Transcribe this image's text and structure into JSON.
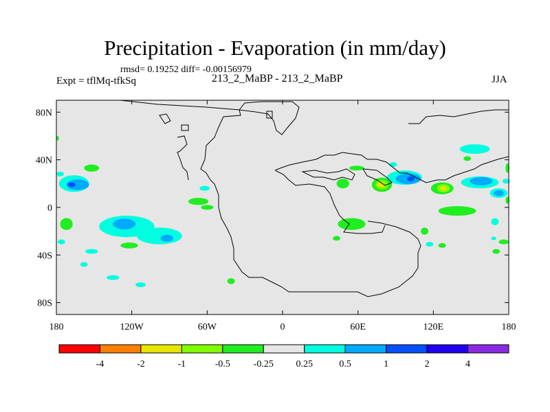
{
  "header": {
    "title": "Precipitation - Evaporation (in mm/day)",
    "stats": "rmsd= 0.19252 diff= -0.00156979",
    "expt": "Expt = tflMq-tfkSq",
    "cases": "213_2_MaBP - 213_2_MaBP",
    "season": "JJA"
  },
  "colors": {
    "background": "#e6e6e6",
    "land_outline": "#000000"
  },
  "chart_data": {
    "type": "heatmap",
    "title": "Precipitation - Evaporation (in mm/day)",
    "xlabel": "",
    "ylabel": "",
    "xlim": [
      -180,
      180
    ],
    "ylim": [
      -90,
      90
    ],
    "x_ticks": [
      {
        "value": -180,
        "label": "180"
      },
      {
        "value": -120,
        "label": "120W"
      },
      {
        "value": -60,
        "label": "60W"
      },
      {
        "value": 0,
        "label": "0"
      },
      {
        "value": 60,
        "label": "60E"
      },
      {
        "value": 120,
        "label": "120E"
      },
      {
        "value": 180,
        "label": "180"
      }
    ],
    "y_ticks": [
      {
        "value": 80,
        "label": "80N"
      },
      {
        "value": 40,
        "label": "40N"
      },
      {
        "value": 0,
        "label": "0"
      },
      {
        "value": -40,
        "label": "40S"
      },
      {
        "value": -80,
        "label": "80S"
      }
    ],
    "colorbar": {
      "levels": [
        "-4",
        "-2",
        "-1",
        "-0.5",
        "-0.25",
        "0.25",
        "0.5",
        "1",
        "2",
        "4"
      ],
      "colors": [
        "#ff0000",
        "#ff8000",
        "#e6e600",
        "#80ff00",
        "#20ee20",
        "#e6e6e6",
        "#00ffe0",
        "#00aaff",
        "#0050ff",
        "#2000ee",
        "#8a2be2"
      ]
    },
    "regions": [
      {
        "lon": -166,
        "lat": 20,
        "rlon": 12,
        "rlat": 7,
        "color": "#00ffe0"
      },
      {
        "lon": -163,
        "lat": 19,
        "rlon": 9,
        "rlat": 4.5,
        "color": "#00aaff"
      },
      {
        "lon": -168,
        "lat": 19,
        "rlon": 3,
        "rlat": 2,
        "color": "#0050ff"
      },
      {
        "lon": -152,
        "lat": 33,
        "rlon": 6,
        "rlat": 3,
        "color": "#20ee20"
      },
      {
        "lon": -177,
        "lat": 28,
        "rlon": 3,
        "rlat": 2,
        "color": "#00ffe0"
      },
      {
        "lon": -124,
        "lat": -16,
        "rlon": 22,
        "rlat": 9,
        "color": "#00ffe0"
      },
      {
        "lon": -98,
        "lat": -24,
        "rlon": 18,
        "rlat": 7,
        "color": "#00ffe0"
      },
      {
        "lon": -126,
        "lat": -14,
        "rlon": 9,
        "rlat": 4.5,
        "color": "#00aaff"
      },
      {
        "lon": -92,
        "lat": -26,
        "rlon": 5,
        "rlat": 3,
        "color": "#00aaff"
      },
      {
        "lon": -172,
        "lat": -14,
        "rlon": 5,
        "rlat": 5,
        "color": "#20ee20"
      },
      {
        "lon": -122,
        "lat": -32,
        "rlon": 7,
        "rlat": 2.5,
        "color": "#20ee20"
      },
      {
        "lon": -176,
        "lat": -29,
        "rlon": 3,
        "rlat": 2,
        "color": "#00ffe0"
      },
      {
        "lon": -152,
        "lat": -37,
        "rlon": 5,
        "rlat": 2,
        "color": "#00ffe0"
      },
      {
        "lon": -158,
        "lat": -48,
        "rlon": 3,
        "rlat": 2,
        "color": "#00ffe0"
      },
      {
        "lon": -135,
        "lat": -59,
        "rlon": 5,
        "rlat": 2,
        "color": "#00ffe0"
      },
      {
        "lon": -113,
        "lat": -65,
        "rlon": 4,
        "rlat": 2,
        "color": "#00ffe0"
      },
      {
        "lon": -41,
        "lat": -62,
        "rlon": 3,
        "rlat": 2.5,
        "color": "#20ee20"
      },
      {
        "lon": -67,
        "lat": 5,
        "rlon": 8,
        "rlat": 3,
        "color": "#20ee20"
      },
      {
        "lon": -60,
        "lat": 0,
        "rlon": 5,
        "rlat": 2,
        "color": "#20ee20"
      },
      {
        "lon": -62,
        "lat": 16,
        "rlon": 4,
        "rlat": 2,
        "color": "#00ffe0"
      },
      {
        "lon": 48,
        "lat": 20,
        "rlon": 5,
        "rlat": 4,
        "color": "#20ee20"
      },
      {
        "lon": 59,
        "lat": 33,
        "rlon": 6,
        "rlat": 2,
        "color": "#20ee20"
      },
      {
        "lon": 79,
        "lat": 19,
        "rlon": 8,
        "rlat": 6,
        "color": "#20ee20"
      },
      {
        "lon": 79,
        "lat": 19,
        "rlon": 5,
        "rlat": 4,
        "color": "#80ff00"
      },
      {
        "lon": 78,
        "lat": 19,
        "rlon": 3,
        "rlat": 2,
        "color": "#e6e600"
      },
      {
        "lon": 97,
        "lat": 25,
        "rlon": 14,
        "rlat": 6,
        "color": "#00ffe0"
      },
      {
        "lon": 100,
        "lat": 24,
        "rlon": 10,
        "rlat": 4.5,
        "color": "#00aaff"
      },
      {
        "lon": 102,
        "lat": 24,
        "rlon": 3,
        "rlat": 2,
        "color": "#0050ff"
      },
      {
        "lon": 88,
        "lat": 36,
        "rlon": 3,
        "rlat": 2,
        "color": "#00ffe0"
      },
      {
        "lon": 127,
        "lat": 16,
        "rlon": 9,
        "rlat": 5,
        "color": "#20ee20"
      },
      {
        "lon": 128,
        "lat": 16,
        "rlon": 5,
        "rlat": 3.5,
        "color": "#80ff00"
      },
      {
        "lon": 128,
        "lat": 16,
        "rlon": 2.5,
        "rlat": 1.8,
        "color": "#e6e600"
      },
      {
        "lon": 157,
        "lat": 21,
        "rlon": 15,
        "rlat": 5,
        "color": "#00ffe0"
      },
      {
        "lon": 158,
        "lat": 22,
        "rlon": 9,
        "rlat": 3.5,
        "color": "#00aaff"
      },
      {
        "lon": 172,
        "lat": 12,
        "rlon": 7,
        "rlat": 4,
        "color": "#00ffe0"
      },
      {
        "lon": 172,
        "lat": 12,
        "rlon": 4,
        "rlat": 2.5,
        "color": "#00aaff"
      },
      {
        "lon": 153,
        "lat": 49,
        "rlon": 12,
        "rlat": 4,
        "color": "#00ffe0"
      },
      {
        "lon": 147,
        "lat": 41,
        "rlon": 3,
        "rlat": 2,
        "color": "#20ee20"
      },
      {
        "lon": 139,
        "lat": -3,
        "rlon": 15,
        "rlat": 4,
        "color": "#20ee20"
      },
      {
        "lon": 178,
        "lat": 22,
        "rlon": 3,
        "rlat": 2,
        "color": "#00ffe0"
      },
      {
        "lon": 55,
        "lat": -14,
        "rlon": 11,
        "rlat": 5,
        "color": "#20ee20"
      },
      {
        "lon": 43,
        "lat": -26,
        "rlon": 3,
        "rlat": 2,
        "color": "#20ee20"
      },
      {
        "lon": 113,
        "lat": -20,
        "rlon": 3,
        "rlat": 3,
        "color": "#20ee20"
      },
      {
        "lon": 117,
        "lat": -31,
        "rlon": 3,
        "rlat": 2,
        "color": "#00ffe0"
      },
      {
        "lon": 169,
        "lat": -12,
        "rlon": 3,
        "rlat": 3,
        "color": "#00ffe0"
      },
      {
        "lon": 168,
        "lat": -26,
        "rlon": 2,
        "rlat": 1.5,
        "color": "#00ffe0"
      },
      {
        "lon": 176,
        "lat": -29,
        "rlon": 4,
        "rlat": 2,
        "color": "#20ee20"
      },
      {
        "lon": 170,
        "lat": -37,
        "rlon": 3,
        "rlat": 2,
        "color": "#20ee20"
      },
      {
        "lon": 127,
        "lat": -32,
        "rlon": 3,
        "rlat": 2,
        "color": "#20ee20"
      },
      {
        "lon": 179,
        "lat": 33,
        "rlon": 1.5,
        "rlat": 4,
        "color": "#20ee20"
      },
      {
        "lon": 179,
        "lat": 6,
        "rlon": 1.5,
        "rlat": 3,
        "color": "#20ee20"
      },
      {
        "lon": -179,
        "lat": 58,
        "rlon": 1,
        "rlat": 2,
        "color": "#20ee20"
      }
    ]
  }
}
